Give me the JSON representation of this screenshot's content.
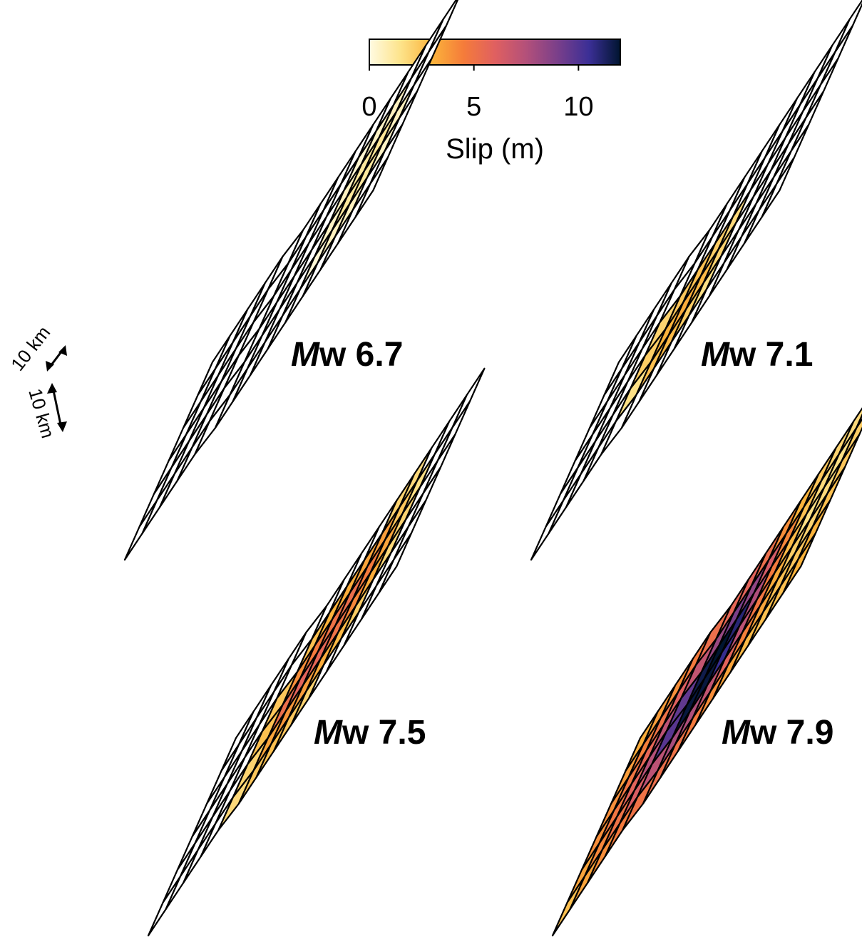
{
  "colorbar": {
    "ticks": [
      "0",
      "5",
      "10"
    ],
    "tick_values": [
      0,
      5,
      10
    ],
    "range": [
      0,
      12
    ],
    "label": "Slip (m)",
    "colormap": "inferno_r",
    "stops": [
      "#fffbe2",
      "#fde38a",
      "#fbb33b",
      "#f57c3a",
      "#e06060",
      "#b3507a",
      "#7a3f8a",
      "#3b2f96",
      "#001530"
    ]
  },
  "scale": {
    "strike_label": "10 km",
    "dip_label": "10 km"
  },
  "panels": [
    {
      "id": "mw67",
      "label_prefix": "M",
      "label_suffix": "w 6.7",
      "slip": [
        [
          0,
          0,
          0,
          0,
          0,
          0,
          0,
          0,
          0,
          0,
          0,
          0,
          0,
          0
        ],
        [
          0,
          0,
          0,
          0,
          0,
          0,
          0,
          0,
          0,
          0.3,
          0.5,
          0.6,
          0,
          0
        ],
        [
          0,
          0,
          0,
          0,
          0,
          0,
          0,
          0,
          0,
          0.6,
          1.2,
          1.3,
          0.6,
          0
        ],
        [
          0,
          0,
          0,
          0,
          0,
          0,
          0,
          0,
          0,
          0.5,
          1.2,
          1.2,
          0.5,
          0
        ],
        [
          0,
          0,
          0,
          0,
          0,
          0,
          0,
          0,
          0,
          0.2,
          0.6,
          0.6,
          0,
          0
        ],
        [
          0,
          0,
          0,
          0,
          0,
          0,
          0,
          0,
          0,
          0,
          0,
          0,
          0,
          0
        ]
      ]
    },
    {
      "id": "mw71",
      "label_prefix": "M",
      "label_suffix": "w 7.1",
      "slip": [
        [
          0,
          0,
          0,
          0,
          0,
          0,
          0,
          0,
          0,
          0,
          0,
          0,
          0,
          0
        ],
        [
          0,
          0,
          0,
          0,
          0,
          0,
          0,
          0,
          0,
          0,
          0,
          0,
          0,
          0
        ],
        [
          0,
          0,
          0,
          0,
          2.0,
          2.4,
          2.6,
          2.2,
          1.8,
          0,
          0,
          0,
          0,
          0
        ],
        [
          0,
          0,
          0,
          0,
          2.2,
          3.0,
          3.2,
          2.8,
          2.0,
          0,
          0,
          0,
          0,
          0
        ],
        [
          0,
          0,
          0,
          0,
          1.6,
          2.6,
          2.8,
          2.2,
          1.6,
          0,
          0,
          0,
          0,
          0
        ],
        [
          0,
          0,
          0,
          0,
          0,
          0,
          0,
          0,
          0,
          0,
          0,
          0,
          0,
          0
        ]
      ]
    },
    {
      "id": "mw75",
      "label_prefix": "M",
      "label_suffix": "w 7.5",
      "slip": [
        [
          0,
          0,
          0,
          0,
          0,
          0,
          0,
          0,
          0,
          2.0,
          1.8,
          0,
          0,
          0
        ],
        [
          0,
          0,
          0,
          0,
          0,
          2.6,
          3.0,
          3.2,
          3.4,
          3.6,
          2.4,
          1.6,
          0,
          0
        ],
        [
          0,
          0,
          0,
          0,
          2.4,
          4.0,
          4.6,
          5.0,
          5.2,
          4.6,
          3.4,
          2.0,
          0,
          0
        ],
        [
          0,
          0,
          0,
          0,
          2.6,
          5.2,
          5.8,
          5.6,
          5.0,
          4.2,
          3.2,
          1.8,
          0,
          0
        ],
        [
          0,
          0,
          0,
          0,
          2.0,
          3.4,
          3.8,
          3.6,
          3.2,
          2.8,
          2.2,
          0,
          0,
          0
        ],
        [
          0,
          0,
          0,
          0,
          1.8,
          2.4,
          2.6,
          2.4,
          2.0,
          0,
          0,
          0,
          0,
          0
        ]
      ]
    },
    {
      "id": "mw79",
      "label_prefix": "M",
      "label_suffix": "w 7.9",
      "slip": [
        [
          3.2,
          3.6,
          4.0,
          4.6,
          5.2,
          5.6,
          5.8,
          5.2,
          4.0,
          3.0,
          2.4,
          2.0,
          1.8,
          2.0
        ],
        [
          3.6,
          4.4,
          5.0,
          6.0,
          7.0,
          8.2,
          9.0,
          8.4,
          6.4,
          4.2,
          2.6,
          1.8,
          1.6,
          2.2
        ],
        [
          4.0,
          4.8,
          5.6,
          7.2,
          9.6,
          11.6,
          12.0,
          11.0,
          7.6,
          4.6,
          2.8,
          1.6,
          1.8,
          2.4
        ],
        [
          4.0,
          4.8,
          5.8,
          7.4,
          9.8,
          11.8,
          11.8,
          10.6,
          7.2,
          4.8,
          3.2,
          2.2,
          2.0,
          2.6
        ],
        [
          3.4,
          4.2,
          5.0,
          6.2,
          7.2,
          7.8,
          7.6,
          7.0,
          5.8,
          4.4,
          3.4,
          2.6,
          2.4,
          3.0
        ],
        [
          2.6,
          3.4,
          4.0,
          4.6,
          5.0,
          5.2,
          5.0,
          4.6,
          4.0,
          3.4,
          2.8,
          2.6,
          2.6,
          3.0
        ]
      ]
    }
  ]
}
